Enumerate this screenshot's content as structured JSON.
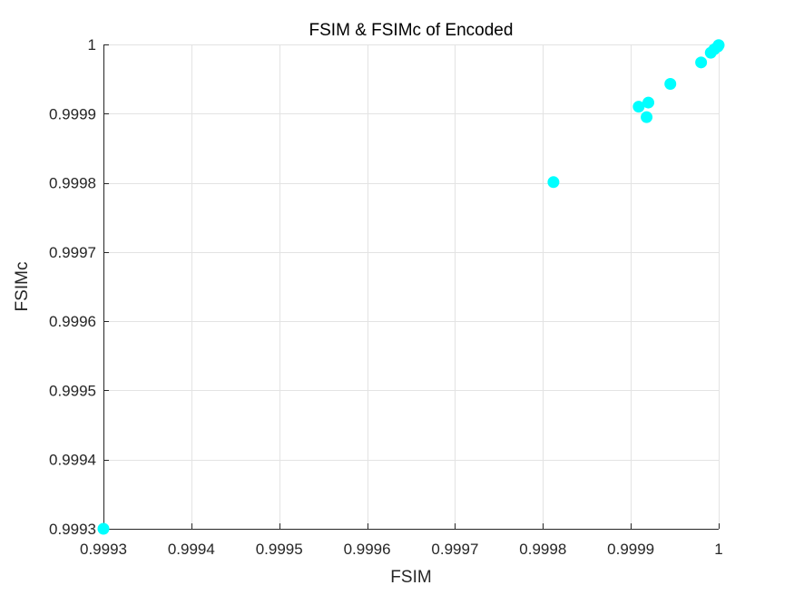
{
  "chart_data": {
    "type": "scatter",
    "title": "FSIM & FSIMc of Encoded",
    "xlabel": "FSIM",
    "ylabel": "FSIMc",
    "xlim": [
      0.9993,
      1.0
    ],
    "ylim": [
      0.9993,
      1.0
    ],
    "grid": true,
    "marker_color": "#00FFFF",
    "x_ticks": [
      0.9993,
      0.9994,
      0.9995,
      0.9996,
      0.9997,
      0.9998,
      0.9999,
      1.0
    ],
    "x_tick_labels": [
      "0.9993",
      "0.9994",
      "0.9995",
      "0.9996",
      "0.9997",
      "0.9998",
      "0.9999",
      "1"
    ],
    "y_ticks": [
      0.9993,
      0.9994,
      0.9995,
      0.9996,
      0.9997,
      0.9998,
      0.9999,
      1.0
    ],
    "y_tick_labels": [
      "0.9993",
      "0.9994",
      "0.9995",
      "0.9996",
      "0.9997",
      "0.9998",
      "0.9999",
      "1"
    ],
    "series": [
      {
        "name": "Encoded",
        "points": [
          {
            "x": 0.9993,
            "y": 0.9993
          },
          {
            "x": 0.999812,
            "y": 0.999801
          },
          {
            "x": 0.999909,
            "y": 0.99991
          },
          {
            "x": 0.99992,
            "y": 0.999916
          },
          {
            "x": 0.999918,
            "y": 0.999895
          },
          {
            "x": 0.999945,
            "y": 0.999943
          },
          {
            "x": 0.99998,
            "y": 0.999974
          },
          {
            "x": 0.999991,
            "y": 0.999988
          },
          {
            "x": 0.999995,
            "y": 0.999993
          },
          {
            "x": 0.999999,
            "y": 0.999997
          },
          {
            "x": 1.0,
            "y": 0.999999
          }
        ]
      }
    ]
  }
}
